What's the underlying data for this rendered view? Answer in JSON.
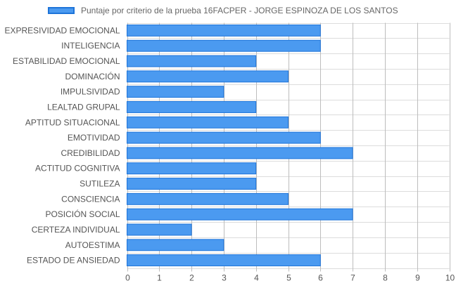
{
  "legend": {
    "label": "Puntaje por criterio de la prueba 16FACPER - JORGE ESPINOZA DE LOS SANTOS"
  },
  "colors": {
    "bar_fill": "#4b9af0",
    "bar_border": "#1e74d9",
    "grid": "#dcdcdc",
    "axis_grid": "#bdbdbd",
    "text": "#555555"
  },
  "chart_data": {
    "type": "bar",
    "orientation": "horizontal",
    "categories": [
      "EXPRESIVIDAD EMOCIONAL",
      "INTELIGENCIA",
      "ESTABILIDAD EMOCIONAL",
      "DOMINACIÓN",
      "IMPULSIVIDAD",
      "LEALTAD GRUPAL",
      "APTITUD SITUACIONAL",
      "EMOTIVIDAD",
      "CREDIBILIDAD",
      "ACTITUD COGNITIVA",
      "SUTILEZA",
      "CONSCIENCIA",
      "POSICIÓN SOCIAL",
      "CERTEZA INDIVIDUAL",
      "AUTOESTIMA",
      "ESTADO DE ANSIEDAD"
    ],
    "series": [
      {
        "name": "Puntaje por criterio de la prueba 16FACPER - JORGE ESPINOZA DE LOS SANTOS",
        "values": [
          6,
          6,
          4,
          5,
          3,
          4,
          5,
          6,
          7,
          4,
          4,
          5,
          7,
          2,
          3,
          6
        ]
      }
    ],
    "x_ticks": [
      "0",
      "1",
      "2",
      "3",
      "4",
      "5",
      "6",
      "7",
      "8",
      "9",
      "10"
    ],
    "xlim": [
      0,
      10
    ],
    "grid": true,
    "legend_position": "top"
  }
}
